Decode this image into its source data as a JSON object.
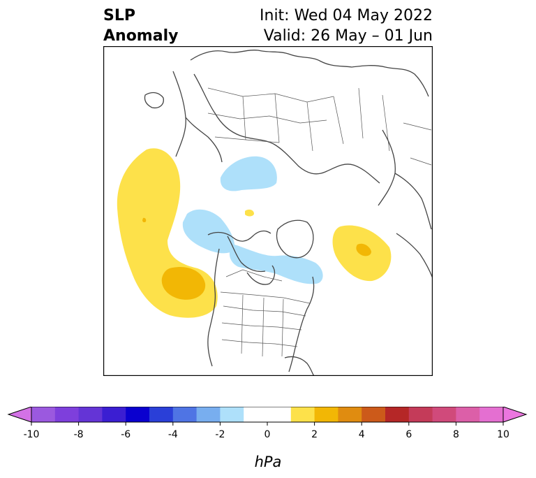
{
  "title": {
    "left_line1": "SLP",
    "left_line2": "Anomaly",
    "right_line1": "Init: Wed 04 May 2022",
    "right_line2": "Valid: 26 May – 01 Jun"
  },
  "map": {
    "projection": "polar-stereographic-north",
    "background": "#ffffff",
    "coastline_color": "#444444",
    "anomalies": [
      {
        "name": "north-pacific-positive",
        "level_hpa": 1,
        "color": "#fde14a"
      },
      {
        "name": "north-pacific-core",
        "level_hpa": 2,
        "color": "#f2b705"
      },
      {
        "name": "north-atlantic-positive",
        "level_hpa": 1,
        "color": "#fde14a"
      },
      {
        "name": "north-atlantic-core",
        "level_hpa": 2,
        "color": "#f2b705"
      },
      {
        "name": "siberia-negative",
        "level_hpa": -1,
        "color": "#aee0fa"
      },
      {
        "name": "arctic-alaska-negative",
        "level_hpa": -1,
        "color": "#aee0fa"
      },
      {
        "name": "hudson-bay-negative",
        "level_hpa": -1,
        "color": "#aee0fa"
      },
      {
        "name": "pole-small-positive",
        "level_hpa": 1,
        "color": "#fde14a"
      }
    ]
  },
  "colorbar": {
    "unit_label": "hPa",
    "ticks": [
      "-10",
      "-8",
      "-6",
      "-4",
      "-2",
      "0",
      "2",
      "4",
      "6",
      "8",
      "10"
    ],
    "bins": [
      {
        "lo": -10,
        "hi": -9,
        "color": "#9b59df"
      },
      {
        "lo": -9,
        "hi": -8,
        "color": "#7e3fdc"
      },
      {
        "lo": -8,
        "hi": -7,
        "color": "#6434d6"
      },
      {
        "lo": -7,
        "hi": -6,
        "color": "#3b1ed2"
      },
      {
        "lo": -6,
        "hi": -5,
        "color": "#0a00cf"
      },
      {
        "lo": -5,
        "hi": -4,
        "color": "#2a3fd8"
      },
      {
        "lo": -4,
        "hi": -3,
        "color": "#4f74e4"
      },
      {
        "lo": -3,
        "hi": -2,
        "color": "#78aeef"
      },
      {
        "lo": -2,
        "hi": -1,
        "color": "#aee0fa"
      },
      {
        "lo": -1,
        "hi": 0,
        "color": "#ffffff"
      },
      {
        "lo": 0,
        "hi": 1,
        "color": "#ffffff"
      },
      {
        "lo": 1,
        "hi": 2,
        "color": "#fde14a"
      },
      {
        "lo": 2,
        "hi": 3,
        "color": "#f2b705"
      },
      {
        "lo": 3,
        "hi": 4,
        "color": "#e08c10"
      },
      {
        "lo": 4,
        "hi": 5,
        "color": "#cc5a1a"
      },
      {
        "lo": 5,
        "hi": 6,
        "color": "#b52727"
      },
      {
        "lo": 6,
        "hi": 7,
        "color": "#c43b59"
      },
      {
        "lo": 7,
        "hi": 8,
        "color": "#d04a7b"
      },
      {
        "lo": 8,
        "hi": 9,
        "color": "#dc5fa8"
      },
      {
        "lo": 9,
        "hi": 10,
        "color": "#e46fd1"
      }
    ],
    "extend_min_color": "#d372e6",
    "extend_max_color": "#eb76df"
  }
}
